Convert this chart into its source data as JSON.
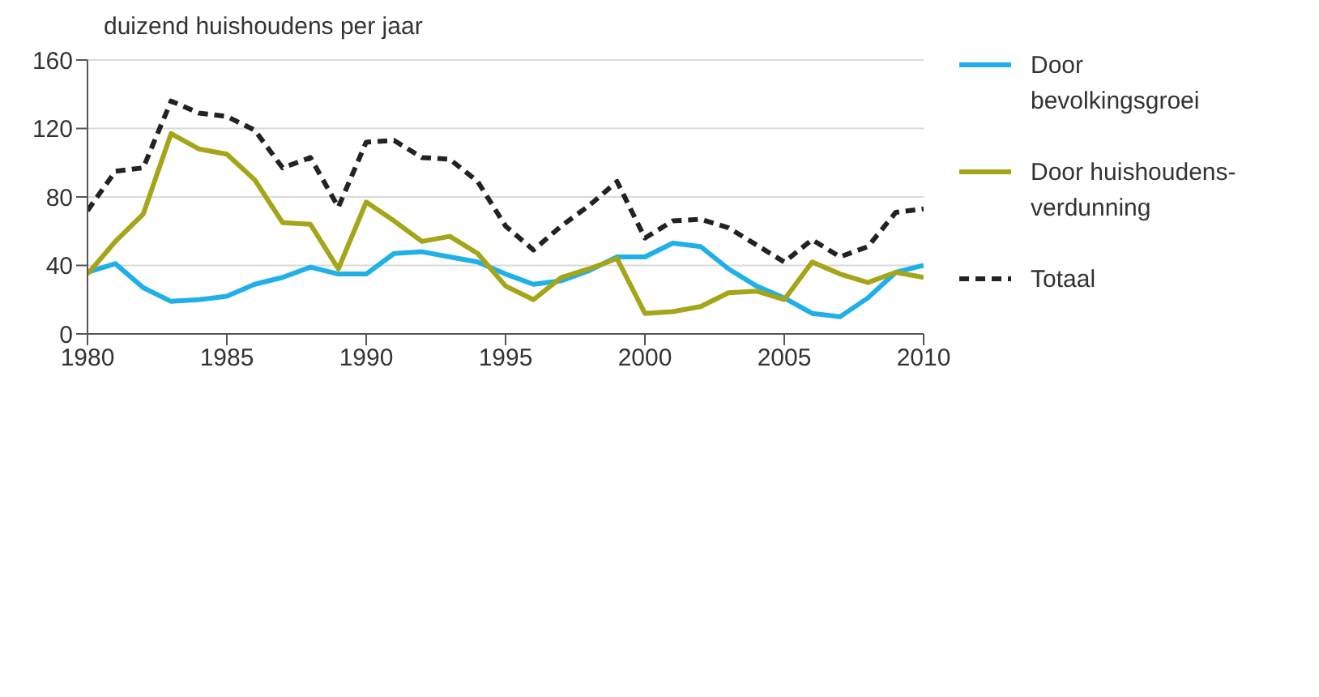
{
  "chart_data": {
    "type": "line",
    "ylabel": "duizend huishoudens per jaar",
    "x": [
      1980,
      1981,
      1982,
      1983,
      1984,
      1985,
      1986,
      1987,
      1988,
      1989,
      1990,
      1991,
      1992,
      1993,
      1994,
      1995,
      1996,
      1997,
      1998,
      1999,
      2000,
      2001,
      2002,
      2003,
      2004,
      2005,
      2006,
      2007,
      2008,
      2009,
      2010
    ],
    "series": [
      {
        "name": "Door bevolkingsgroei",
        "color": "#1fb0e8",
        "line_style": "solid",
        "values": [
          36,
          41,
          27,
          19,
          20,
          22,
          29,
          33,
          39,
          35,
          35,
          47,
          48,
          45,
          42,
          35,
          29,
          31,
          37,
          45,
          45,
          53,
          51,
          38,
          28,
          21,
          12,
          10,
          21,
          36,
          40
        ]
      },
      {
        "name": "Door huishoudens-verdunning",
        "color": "#a5a51a",
        "line_style": "solid",
        "values": [
          35,
          54,
          70,
          117,
          108,
          105,
          90,
          65,
          64,
          38,
          77,
          66,
          54,
          57,
          47,
          28,
          20,
          33,
          38,
          44,
          12,
          13,
          16,
          24,
          25,
          20,
          42,
          35,
          30,
          36,
          33
        ]
      },
      {
        "name": "Totaal",
        "color": "#222222",
        "line_style": "dashed",
        "values": [
          72,
          95,
          97,
          136,
          129,
          127,
          119,
          97,
          103,
          74,
          112,
          113,
          103,
          102,
          89,
          63,
          49,
          63,
          75,
          89,
          56,
          66,
          67,
          62,
          52,
          42,
          55,
          45,
          51,
          71,
          73
        ]
      }
    ],
    "xlim": [
      1980,
      2010
    ],
    "xticks": [
      1980,
      1985,
      1990,
      1995,
      2000,
      2005,
      2010
    ],
    "ylim": [
      0,
      160
    ],
    "yticks": [
      0,
      40,
      80,
      120,
      160
    ],
    "grid": "y",
    "legend": "right",
    "marker": "none"
  }
}
